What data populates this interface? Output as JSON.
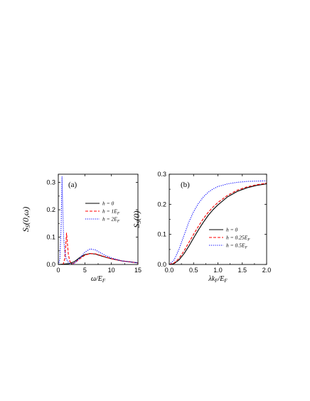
{
  "chart_data": [
    {
      "type": "line",
      "panel_label": "(a)",
      "xlabel": "ω/E_F",
      "ylabel": "S_S(0,ω)",
      "xlim": [
        0,
        15
      ],
      "ylim": [
        0,
        0.33
      ],
      "xticks": [
        0,
        5,
        10,
        15
      ],
      "yticks": [
        0.0,
        0.1,
        0.2,
        0.3
      ],
      "xtick_labels": [
        "0",
        "5",
        "10",
        "15"
      ],
      "ytick_labels": [
        "0.0",
        "0.1",
        "0.2",
        "0.3"
      ],
      "legend_position": "upper-right",
      "series": [
        {
          "name": "h = 0",
          "color": "#000000",
          "dash": "solid",
          "x": [
            0,
            2,
            3,
            4,
            5,
            6,
            7,
            8,
            9,
            10,
            12,
            15
          ],
          "y": [
            0,
            0.003,
            0.01,
            0.025,
            0.036,
            0.04,
            0.038,
            0.032,
            0.026,
            0.021,
            0.013,
            0.006
          ]
        },
        {
          "name": "h = 1E_F",
          "color": "#ff0000",
          "dash": "dashed",
          "x": [
            0,
            0.9,
            1.2,
            1.4,
            1.55,
            1.7,
            1.9,
            2.2,
            2.6,
            3,
            4,
            5,
            6,
            7,
            8,
            9,
            10,
            12,
            15
          ],
          "y": [
            0,
            0,
            0.02,
            0.07,
            0.115,
            0.08,
            0.035,
            0.01,
            0.003,
            0.005,
            0.02,
            0.034,
            0.04,
            0.039,
            0.033,
            0.027,
            0.021,
            0.013,
            0.006
          ]
        },
        {
          "name": "h = 2E_F",
          "color": "#0000ff",
          "dash": "dotted",
          "x": [
            0,
            0.3,
            0.55,
            0.7,
            0.85,
            1.0,
            1.2,
            1.5,
            2,
            2.5,
            3,
            4,
            5,
            6,
            7,
            8,
            9,
            10,
            12,
            15
          ],
          "y": [
            0,
            0.02,
            0.15,
            0.32,
            0.2,
            0.1,
            0.05,
            0.02,
            0.005,
            0.002,
            0.004,
            0.022,
            0.045,
            0.057,
            0.053,
            0.042,
            0.032,
            0.024,
            0.013,
            0.006
          ]
        }
      ]
    },
    {
      "type": "line",
      "panel_label": "(b)",
      "xlabel": "λk_F/E_F",
      "ylabel": "S_S(0)",
      "xlim": [
        0,
        2
      ],
      "ylim": [
        0,
        0.3
      ],
      "xticks": [
        0.0,
        0.5,
        1.0,
        1.5,
        2.0
      ],
      "yticks": [
        0.0,
        0.1,
        0.2,
        0.3
      ],
      "xtick_labels": [
        "0.0",
        "0.5",
        "1.0",
        "1.5",
        "2.0"
      ],
      "ytick_labels": [
        "0.0",
        "0.1",
        "0.2",
        "0.3"
      ],
      "legend_position": "lower-right",
      "series": [
        {
          "name": "h = 0",
          "color": "#000000",
          "dash": "solid",
          "x": [
            0,
            0.1,
            0.2,
            0.3,
            0.4,
            0.5,
            0.6,
            0.7,
            0.8,
            0.9,
            1.0,
            1.2,
            1.4,
            1.6,
            1.8,
            2.0
          ],
          "y": [
            0,
            0.003,
            0.015,
            0.035,
            0.06,
            0.088,
            0.115,
            0.14,
            0.163,
            0.182,
            0.198,
            0.225,
            0.243,
            0.255,
            0.263,
            0.268
          ]
        },
        {
          "name": "h = 0.25E_F",
          "color": "#ff0000",
          "dash": "dashed",
          "x": [
            0,
            0.1,
            0.2,
            0.3,
            0.4,
            0.5,
            0.6,
            0.7,
            0.8,
            0.9,
            1.0,
            1.2,
            1.4,
            1.6,
            1.8,
            2.0
          ],
          "y": [
            0,
            0.005,
            0.02,
            0.044,
            0.072,
            0.1,
            0.127,
            0.152,
            0.173,
            0.191,
            0.206,
            0.23,
            0.247,
            0.258,
            0.265,
            0.27
          ]
        },
        {
          "name": "h = 0.5E_F",
          "color": "#0000ff",
          "dash": "dotted",
          "x": [
            0,
            0.1,
            0.2,
            0.3,
            0.4,
            0.5,
            0.6,
            0.7,
            0.8,
            0.9,
            1.0,
            1.2,
            1.4,
            1.6,
            1.8,
            2.0
          ],
          "y": [
            0,
            0.015,
            0.05,
            0.095,
            0.14,
            0.175,
            0.203,
            0.224,
            0.24,
            0.251,
            0.259,
            0.268,
            0.273,
            0.276,
            0.277,
            0.278
          ]
        }
      ]
    }
  ]
}
